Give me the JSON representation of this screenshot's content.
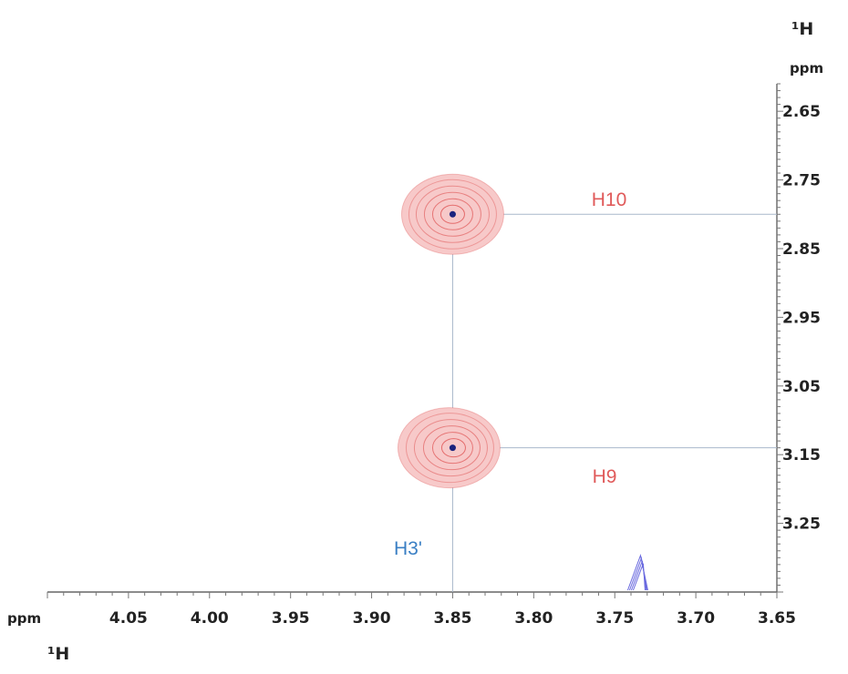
{
  "chart_data": {
    "type": "scatter",
    "x_axis": {
      "nucleus": "¹H",
      "unit": "ppm",
      "range": [
        4.1,
        3.65
      ],
      "reversed": true,
      "ticks": [
        "4.05",
        "4.00",
        "3.95",
        "3.90",
        "3.85",
        "3.80",
        "3.75",
        "3.70",
        "3.65"
      ]
    },
    "y_axis": {
      "nucleus": "¹H",
      "unit": "ppm",
      "range": [
        2.61,
        3.35
      ],
      "reversed": true,
      "ticks": [
        "2.65",
        "2.75",
        "2.85",
        "2.95",
        "3.05",
        "3.15",
        "3.25"
      ]
    },
    "grid": false,
    "peaks": [
      {
        "label": "H10",
        "x": 3.85,
        "y": 2.8,
        "color": "#e05a5a",
        "sign": "positive"
      },
      {
        "label": "H9",
        "x": 3.85,
        "y": 3.14,
        "color": "#e05a5a",
        "sign": "positive"
      }
    ],
    "negative_peak": {
      "x": 3.733,
      "y": 3.31,
      "color": "#6a6adf",
      "sign": "negative"
    },
    "annotations": [
      {
        "text": "H3'",
        "color": "#3a7fc4"
      }
    ]
  }
}
